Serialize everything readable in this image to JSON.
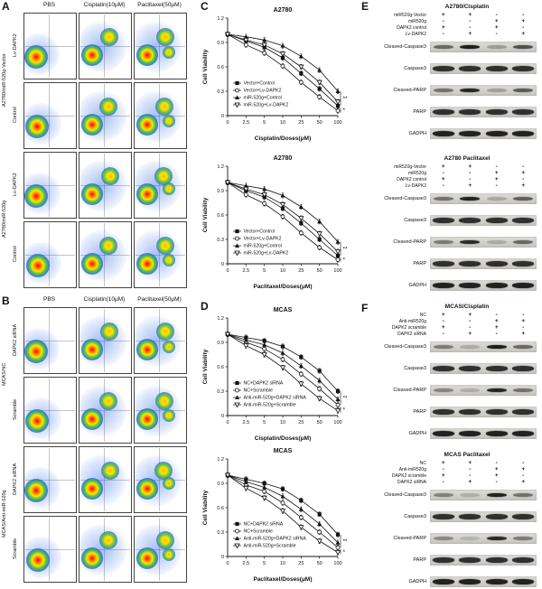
{
  "panel_letters": {
    "a": "A",
    "b": "B",
    "c": "C",
    "d": "D",
    "e": "E",
    "f": "F"
  },
  "flow_panels": [
    {
      "id": "A",
      "col_headers": [
        "PBS",
        "Cisplatin(10μM)",
        "Paclitaxel(50μM)"
      ],
      "rows": [
        {
          "group": "A2780/miR-520g-Vector",
          "label": "Lv-DAPK2"
        },
        {
          "group": "",
          "label": "Control"
        },
        {
          "group": "A2780/miR-520g",
          "label": "Lv-DAPK2"
        },
        {
          "group": "",
          "label": "Control"
        }
      ]
    },
    {
      "id": "B",
      "col_headers": [
        "PBS",
        "Cisplatin(10μM)",
        "Paclitaxel(50μM)"
      ],
      "rows": [
        {
          "group": "MCAS/NC",
          "label": "DAPK2 siRNA"
        },
        {
          "group": "",
          "label": "Scramble"
        },
        {
          "group": "MCAS/Anti-miR-520g",
          "label": "DAPK2 siRNA"
        },
        {
          "group": "",
          "label": "Scramble"
        }
      ]
    }
  ],
  "chart_data": [
    {
      "type": "line",
      "panel": "C",
      "title": "A2780",
      "xlabel": "Cisplatin/Doses(μM)",
      "ylabel": "Cell Viability",
      "x_categories": [
        "0",
        "2.5",
        "5",
        "10",
        "25",
        "50",
        "100"
      ],
      "ylim": [
        0,
        1.2
      ],
      "y_ticks": [
        0,
        0.3,
        0.6,
        0.9,
        1.2
      ],
      "legend_position": "lower-left",
      "grid": false,
      "series": [
        {
          "name": "Vector+Control",
          "marker": "square-filled",
          "values": [
            1.0,
            0.92,
            0.84,
            0.71,
            0.52,
            0.33,
            0.12
          ]
        },
        {
          "name": "Vector+Lv-DAPK2",
          "marker": "circle-open",
          "values": [
            1.0,
            0.87,
            0.77,
            0.61,
            0.41,
            0.23,
            0.06
          ]
        },
        {
          "name": "miR-520g+Control",
          "marker": "triangle-filled",
          "values": [
            1.0,
            0.97,
            0.93,
            0.86,
            0.73,
            0.56,
            0.3
          ]
        },
        {
          "name": "miR-520g+Lv-DAPK2",
          "marker": "triangle-down-open",
          "values": [
            1.0,
            0.93,
            0.87,
            0.76,
            0.6,
            0.41,
            0.17
          ]
        }
      ],
      "significance": [
        "**",
        "*"
      ]
    },
    {
      "type": "line",
      "panel": "C",
      "title": "A2780",
      "xlabel": "Paclitaxel/Doses(μM)",
      "ylabel": "Cell Viability",
      "x_categories": [
        "0",
        "2.5",
        "5",
        "10",
        "25",
        "50",
        "100"
      ],
      "ylim": [
        0,
        1.2
      ],
      "y_ticks": [
        0,
        0.3,
        0.6,
        0.9,
        1.2
      ],
      "legend_position": "lower-left",
      "grid": false,
      "series": [
        {
          "name": "Vector+Control",
          "marker": "square-filled",
          "values": [
            1.0,
            0.9,
            0.82,
            0.68,
            0.5,
            0.3,
            0.1
          ]
        },
        {
          "name": "Vector+Lv-DAPK2",
          "marker": "circle-open",
          "values": [
            1.0,
            0.85,
            0.74,
            0.58,
            0.38,
            0.2,
            0.05
          ]
        },
        {
          "name": "miR-520g+Control",
          "marker": "triangle-filled",
          "values": [
            1.0,
            0.96,
            0.92,
            0.84,
            0.7,
            0.52,
            0.27
          ]
        },
        {
          "name": "miR-520g+Lv-DAPK2",
          "marker": "triangle-down-open",
          "values": [
            1.0,
            0.92,
            0.85,
            0.73,
            0.56,
            0.37,
            0.15
          ]
        }
      ],
      "significance": [
        "**",
        "*"
      ]
    },
    {
      "type": "line",
      "panel": "D",
      "title": "MCAS",
      "xlabel": "Cisplatin/Doses(μM)",
      "ylabel": "Cell Viability",
      "x_categories": [
        "0",
        "2.5",
        "5",
        "10",
        "25",
        "50",
        "100"
      ],
      "ylim": [
        0,
        1.2
      ],
      "y_ticks": [
        0,
        0.3,
        0.6,
        0.9,
        1.2
      ],
      "legend_position": "lower-left",
      "grid": false,
      "series": [
        {
          "name": "NC+DAPK2 siRNA",
          "marker": "square-filled",
          "values": [
            1.0,
            0.96,
            0.92,
            0.85,
            0.72,
            0.55,
            0.3
          ]
        },
        {
          "name": "NC+Scramble",
          "marker": "circle-open",
          "values": [
            1.0,
            0.9,
            0.82,
            0.69,
            0.51,
            0.33,
            0.13
          ]
        },
        {
          "name": "Anti-miR-520g+DAPK2 siRNA",
          "marker": "triangle-filled",
          "values": [
            1.0,
            0.93,
            0.87,
            0.77,
            0.61,
            0.43,
            0.2
          ]
        },
        {
          "name": "Anti-miR-520g+Scramble",
          "marker": "triangle-down-open",
          "values": [
            1.0,
            0.86,
            0.75,
            0.59,
            0.39,
            0.21,
            0.06
          ]
        }
      ],
      "significance": [
        "**",
        "*"
      ]
    },
    {
      "type": "line",
      "panel": "D",
      "title": "MCAS",
      "xlabel": "Paclitaxel/Doses(μM)",
      "ylabel": "Cell Viability",
      "x_categories": [
        "0",
        "2.5",
        "5",
        "10",
        "25",
        "50",
        "100"
      ],
      "ylim": [
        0,
        1.2
      ],
      "y_ticks": [
        0,
        0.3,
        0.6,
        0.9,
        1.2
      ],
      "legend_position": "lower-left",
      "grid": false,
      "series": [
        {
          "name": "NC+DAPK2 siRNA",
          "marker": "square-filled",
          "values": [
            1.0,
            0.95,
            0.9,
            0.83,
            0.69,
            0.52,
            0.27
          ]
        },
        {
          "name": "NC+Scramble",
          "marker": "circle-open",
          "values": [
            1.0,
            0.88,
            0.8,
            0.66,
            0.48,
            0.3,
            0.11
          ]
        },
        {
          "name": "Anti-miR-520g+DAPK2 siRNA",
          "marker": "triangle-filled",
          "values": [
            1.0,
            0.92,
            0.85,
            0.74,
            0.58,
            0.4,
            0.17
          ]
        },
        {
          "name": "Anti-miR-520g+Scramble",
          "marker": "triangle-down-open",
          "values": [
            1.0,
            0.84,
            0.72,
            0.56,
            0.36,
            0.19,
            0.05
          ]
        }
      ],
      "significance": [
        "**",
        "*"
      ]
    }
  ],
  "blot_panels": [
    {
      "id": "E",
      "blocks": [
        {
          "title": "A2780/Cisplatin",
          "conditions": [
            {
              "label": "miR520g-Vector",
              "signs": [
                "+",
                "+",
                "-",
                "-"
              ]
            },
            {
              "label": "miR520g",
              "signs": [
                "-",
                "-",
                "+",
                "+"
              ]
            },
            {
              "label": "DAPK2 control",
              "signs": [
                "+",
                "-",
                "+",
                "-"
              ]
            },
            {
              "label": "Lv-DAPK2",
              "signs": [
                "-",
                "+",
                "-",
                "+"
              ]
            }
          ],
          "proteins": [
            {
              "name": "Cleaved-Caspase3",
              "bands": [
                0.55,
                0.95,
                0.28,
                0.68
              ]
            },
            {
              "name": "Caspase3",
              "bands": [
                0.85,
                0.85,
                0.85,
                0.85
              ]
            },
            {
              "name": "Cleaved-PARP",
              "bands": [
                0.5,
                0.9,
                0.25,
                0.62
              ]
            },
            {
              "name": "PARP",
              "bands": [
                0.85,
                0.85,
                0.85,
                0.85
              ]
            },
            {
              "name": "GADPH",
              "bands": [
                0.92,
                0.92,
                0.92,
                0.92
              ]
            }
          ]
        },
        {
          "title": "A2780 Paclitaxel",
          "conditions": [
            {
              "label": "miR520g-Vector",
              "signs": [
                "+",
                "+",
                "-",
                "-"
              ]
            },
            {
              "label": "miR520g",
              "signs": [
                "-",
                "-",
                "+",
                "+"
              ]
            },
            {
              "label": "DAPK2 control",
              "signs": [
                "+",
                "-",
                "+",
                "-"
              ]
            },
            {
              "label": "Lv-DAPK2",
              "signs": [
                "-",
                "+",
                "-",
                "+"
              ]
            }
          ],
          "proteins": [
            {
              "name": "Cleaved-Caspase3",
              "bands": [
                0.5,
                0.92,
                0.22,
                0.6
              ]
            },
            {
              "name": "Caspase3",
              "bands": [
                0.85,
                0.85,
                0.85,
                0.85
              ]
            },
            {
              "name": "Cleaved-PARP",
              "bands": [
                0.45,
                0.88,
                0.2,
                0.55
              ]
            },
            {
              "name": "PARP",
              "bands": [
                0.85,
                0.85,
                0.85,
                0.85
              ]
            },
            {
              "name": "GADPH",
              "bands": [
                0.92,
                0.92,
                0.92,
                0.92
              ]
            }
          ]
        }
      ]
    },
    {
      "id": "F",
      "blocks": [
        {
          "title": "MCAS/Cisplatin",
          "conditions": [
            {
              "label": "NC",
              "signs": [
                "+",
                "+",
                "-",
                "-"
              ]
            },
            {
              "label": "Anti-miR520g",
              "signs": [
                "-",
                "-",
                "+",
                "+"
              ]
            },
            {
              "label": "DAPK2 scramble",
              "signs": [
                "+",
                "-",
                "+",
                "-"
              ]
            },
            {
              "label": "DAPK2 siRNA",
              "signs": [
                "-",
                "+",
                "-",
                "+"
              ]
            }
          ],
          "proteins": [
            {
              "name": "Cleaved-Caspase3",
              "bands": [
                0.45,
                0.2,
                0.95,
                0.55
              ]
            },
            {
              "name": "Caspase3",
              "bands": [
                0.85,
                0.85,
                0.85,
                0.85
              ]
            },
            {
              "name": "Cleaved-PARP",
              "bands": [
                0.4,
                0.18,
                0.9,
                0.5
              ]
            },
            {
              "name": "PARP",
              "bands": [
                0.85,
                0.85,
                0.85,
                0.85
              ]
            },
            {
              "name": "GADPH",
              "bands": [
                0.92,
                0.92,
                0.92,
                0.92
              ]
            }
          ]
        },
        {
          "title": "MCAS Paclitaxel",
          "conditions": [
            {
              "label": "NC",
              "signs": [
                "+",
                "+",
                "-",
                "-"
              ]
            },
            {
              "label": "Anti-miR520g",
              "signs": [
                "-",
                "-",
                "+",
                "+"
              ]
            },
            {
              "label": "DAPK2 scramble",
              "signs": [
                "+",
                "-",
                "+",
                "-"
              ]
            },
            {
              "label": "DAPK2 siRNA",
              "signs": [
                "-",
                "+",
                "-",
                "+"
              ]
            }
          ],
          "proteins": [
            {
              "name": "Cleaved-Caspase3",
              "bands": [
                0.42,
                0.18,
                0.92,
                0.5
              ]
            },
            {
              "name": "Caspase3",
              "bands": [
                0.85,
                0.85,
                0.85,
                0.85
              ]
            },
            {
              "name": "Cleaved-PARP",
              "bands": [
                0.38,
                0.15,
                0.88,
                0.45
              ]
            },
            {
              "name": "PARP",
              "bands": [
                0.85,
                0.85,
                0.85,
                0.85
              ]
            },
            {
              "name": "GADPH",
              "bands": [
                0.92,
                0.92,
                0.92,
                0.92
              ]
            }
          ]
        }
      ]
    }
  ]
}
